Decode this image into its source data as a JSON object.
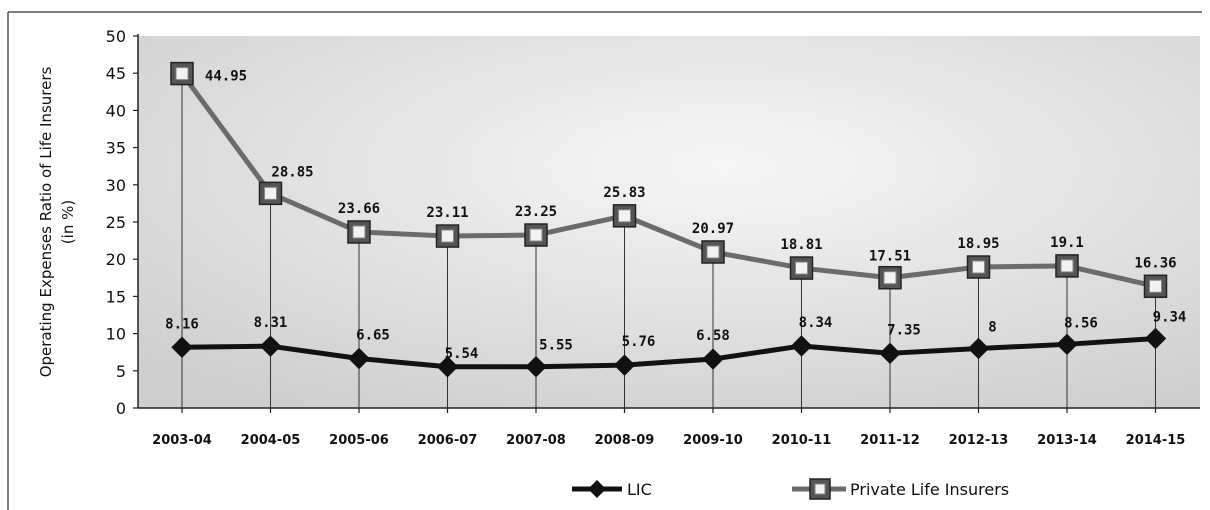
{
  "chart_data": {
    "type": "line",
    "title": "",
    "xlabel": "",
    "ylabel_line1": "Operating Expenses Ratio of Life Insurers",
    "ylabel_line2": "(in %)",
    "ylim": [
      0,
      50
    ],
    "yticks": [
      0,
      5,
      10,
      15,
      20,
      25,
      30,
      35,
      40,
      45,
      50
    ],
    "categories": [
      "2003-04",
      "2004-05",
      "2005-06",
      "2006-07",
      "2007-08",
      "2008-09",
      "2009-10",
      "2010-11",
      "2011-12",
      "2012-13",
      "2013-14",
      "2014-15"
    ],
    "series": [
      {
        "name": "LIC",
        "marker": "diamond",
        "color": "#111111",
        "values": [
          8.16,
          8.31,
          6.65,
          5.54,
          5.55,
          5.76,
          6.58,
          8.34,
          7.35,
          8,
          8.56,
          9.34
        ],
        "labels": [
          "8.16",
          "8.31",
          "6.65",
          "5.54",
          "5.55",
          "5.76",
          "6.58",
          "8.34",
          "7.35",
          "8",
          "8.56",
          "9.34"
        ]
      },
      {
        "name": "Private Life Insurers",
        "marker": "square",
        "color": "#6b6b6b",
        "values": [
          44.95,
          28.85,
          23.66,
          23.11,
          23.25,
          25.83,
          20.97,
          18.81,
          17.51,
          18.95,
          19.1,
          16.36
        ],
        "labels": [
          "44.95",
          "28.85",
          "23.66",
          "23.11",
          "23.25",
          "25.83",
          "20.97",
          "18.81",
          "17.51",
          "18.95",
          "19.1",
          "16.36"
        ]
      }
    ],
    "grid": false,
    "drop_lines": true,
    "legend_position": "bottom"
  }
}
